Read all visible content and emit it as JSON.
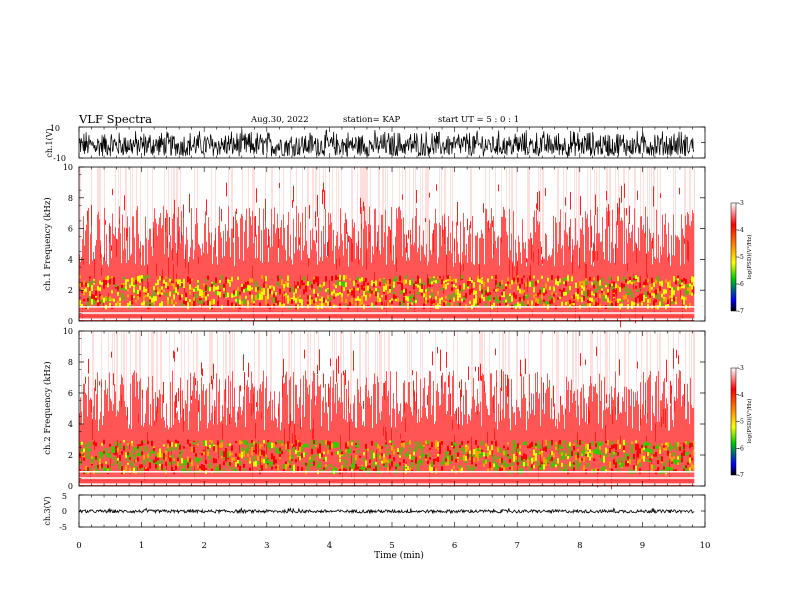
{
  "header": {
    "title": "VLF Spectra",
    "date": "Aug.30, 2022",
    "station": "station= KAP",
    "start": "start  UT =  5 : 0  : 1"
  },
  "colors": {
    "spectrum_white": "#ffffff",
    "spectrum_red": "#ff0000",
    "spectrum_orange": "#ffa500",
    "spectrum_yellow": "#ffff00",
    "spectrum_green": "#33cc00",
    "spectrum_blue": "#0033ff",
    "spectrum_black": "#000000"
  },
  "chart_data": [
    {
      "type": "line",
      "panel": "waveform-ch1",
      "ylabel": "ch.1(V)",
      "ylim": [
        -10,
        10
      ],
      "ytick_labels": [
        "10",
        "-10"
      ],
      "xlim": [
        0,
        10
      ],
      "x_end": 9.83,
      "approx_signal_range": [
        -9,
        9
      ]
    },
    {
      "type": "heatmap",
      "panel": "spectrogram-ch1",
      "ylabel": "ch.1 Frequency (kHz)",
      "ylim": [
        0,
        10
      ],
      "ytick_labels": [
        "0",
        "2",
        "4",
        "6",
        "8",
        "10"
      ],
      "xlim": [
        0,
        10
      ],
      "x_end": 9.83,
      "colorbar": {
        "label": "log(PSD)(V²/Hz)",
        "range": [
          -7,
          -3
        ],
        "tick_labels": [
          "-3",
          "-4",
          "-5",
          "-6",
          "-7"
        ]
      }
    },
    {
      "type": "heatmap",
      "panel": "spectrogram-ch2",
      "ylabel": "ch.2 Frequency (kHz)",
      "ylim": [
        0,
        10
      ],
      "ytick_labels": [
        "0",
        "2",
        "4",
        "6",
        "8",
        "10"
      ],
      "xlim": [
        0,
        10
      ],
      "x_end": 9.83,
      "colorbar": {
        "label": "log(PSD)(V²/Hz)",
        "range": [
          -7,
          -3
        ],
        "tick_labels": [
          "-3",
          "-4",
          "-5",
          "-6",
          "-7"
        ]
      }
    },
    {
      "type": "line",
      "panel": "waveform-ch3",
      "ylabel": "ch.3(V)",
      "ylim": [
        -5,
        5
      ],
      "ytick_labels": [
        "5",
        "0",
        "-5"
      ],
      "xlim": [
        0,
        10
      ],
      "x_end": 9.83,
      "approx_signal_range": [
        -0.6,
        0.4
      ]
    }
  ],
  "xaxis": {
    "label": "Time (min)",
    "tick_labels": [
      "0",
      "1",
      "2",
      "3",
      "4",
      "5",
      "6",
      "7",
      "8",
      "9",
      "10"
    ]
  }
}
